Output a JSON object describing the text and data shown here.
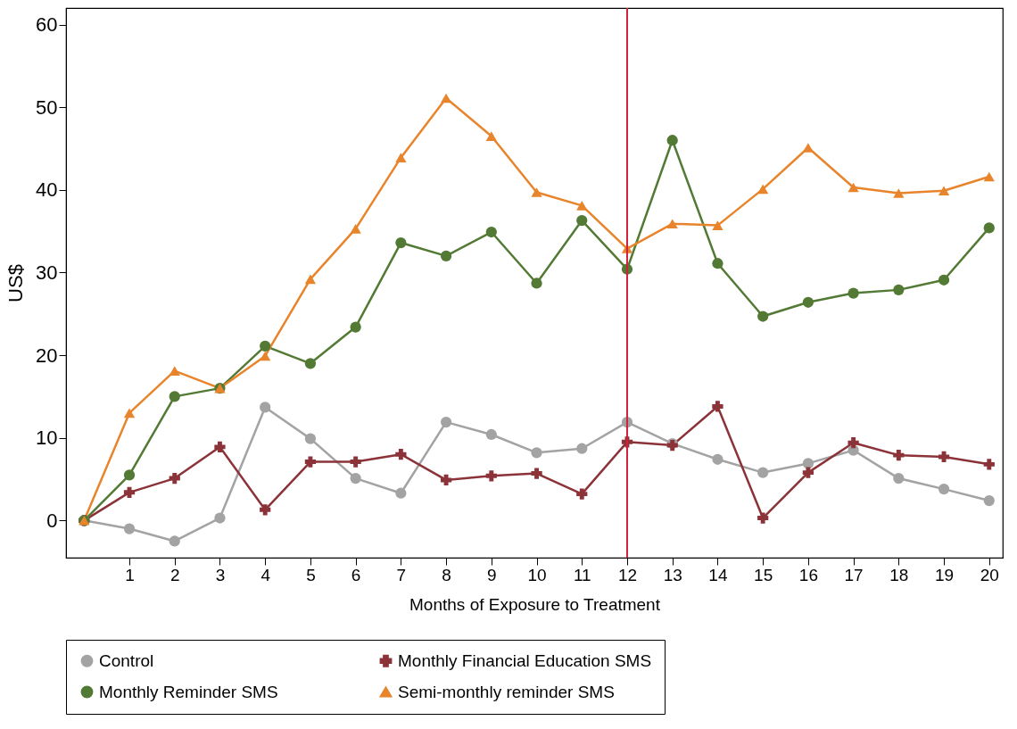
{
  "chart_data": {
    "type": "line",
    "xlabel": "Months of Exposure to Treatment",
    "ylabel": "US$",
    "x": [
      0,
      1,
      2,
      3,
      4,
      5,
      6,
      7,
      8,
      9,
      10,
      11,
      12,
      13,
      14,
      15,
      16,
      17,
      18,
      19,
      20
    ],
    "xlim": [
      -0.4,
      20.3
    ],
    "xticks": [
      1,
      2,
      3,
      4,
      5,
      6,
      7,
      8,
      9,
      10,
      11,
      12,
      13,
      14,
      15,
      16,
      17,
      18,
      19,
      20
    ],
    "ylim": [
      -4.5,
      62
    ],
    "yticks": [
      0,
      10,
      20,
      30,
      40,
      50,
      60
    ],
    "grid": false,
    "legend": "bottom",
    "line_style": "solid",
    "ref_lines": [
      {
        "axis": "x",
        "value": 12,
        "color": "#d0223a"
      }
    ],
    "series": [
      {
        "name": "Control",
        "color": "#a3a3a3",
        "marker": "circle",
        "values": [
          0,
          -1,
          -2.5,
          0.3,
          13.7,
          9.9,
          5.1,
          3.3,
          11.9,
          10.4,
          8.2,
          8.7,
          11.9,
          9.3,
          7.4,
          5.8,
          6.9,
          8.5,
          5.1,
          3.8,
          2.4
        ]
      },
      {
        "name": "Monthly Financial Education SMS",
        "color": "#8c3339",
        "marker": "cross",
        "values": [
          0,
          3.4,
          5.1,
          8.9,
          1.3,
          7.1,
          7.1,
          8,
          4.9,
          5.4,
          5.7,
          3.2,
          9.5,
          9.1,
          13.8,
          0.3,
          5.8,
          9.4,
          7.9,
          7.7,
          6.8
        ]
      },
      {
        "name": "Monthly Reminder SMS",
        "color": "#527a34",
        "marker": "circle",
        "values": [
          0,
          5.5,
          15,
          16,
          21.1,
          19,
          23.4,
          33.6,
          32,
          34.9,
          28.7,
          36.3,
          30.4,
          46,
          31.1,
          24.7,
          26.4,
          27.5,
          27.9,
          29.1,
          35.4
        ]
      },
      {
        "name": "Semi-monthly reminder SMS",
        "color": "#e8842b",
        "marker": "triangle",
        "values": [
          0,
          13,
          18.1,
          16,
          19.9,
          29.2,
          35.3,
          43.9,
          51.1,
          46.5,
          39.7,
          38.1,
          32.9,
          35.9,
          35.7,
          40.1,
          45.1,
          40.3,
          39.6,
          39.9,
          41.6
        ]
      }
    ]
  }
}
